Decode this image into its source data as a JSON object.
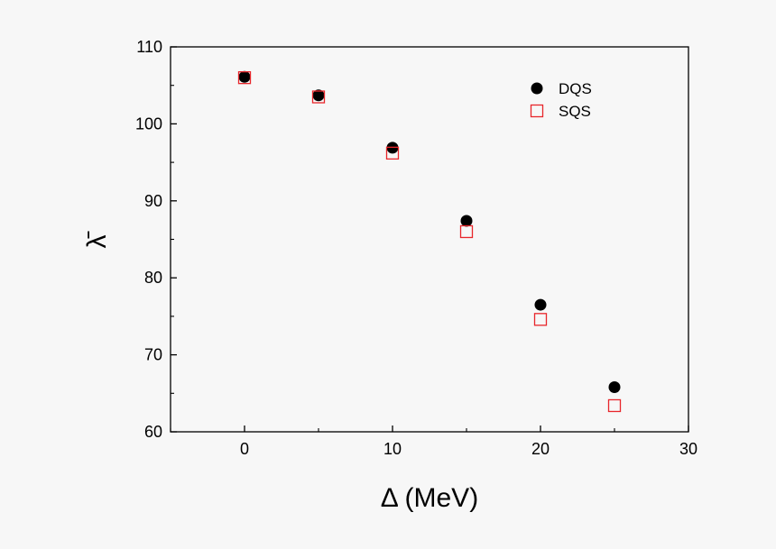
{
  "chart_data": {
    "type": "scatter",
    "xlabel": "Δ (MeV)",
    "ylabel": "λ̄",
    "xlim": [
      -5,
      30
    ],
    "ylim": [
      60,
      110
    ],
    "xticks": [
      0,
      10,
      20,
      30
    ],
    "yticks": [
      60,
      70,
      80,
      90,
      100,
      110
    ],
    "grid": false,
    "legend_position": "top-right",
    "series": [
      {
        "name": "DQS",
        "marker": "filled-circle",
        "color": "#000000",
        "points": [
          {
            "x": 0,
            "y": 106.1
          },
          {
            "x": 5,
            "y": 103.7
          },
          {
            "x": 10,
            "y": 96.9
          },
          {
            "x": 15,
            "y": 87.4
          },
          {
            "x": 20,
            "y": 76.5
          },
          {
            "x": 25,
            "y": 65.8
          }
        ]
      },
      {
        "name": "SQS",
        "marker": "open-square",
        "color": "#e8262b",
        "points": [
          {
            "x": 0,
            "y": 106.0
          },
          {
            "x": 5,
            "y": 103.5
          },
          {
            "x": 10,
            "y": 96.2
          },
          {
            "x": 15,
            "y": 86.0
          },
          {
            "x": 20,
            "y": 74.6
          },
          {
            "x": 25,
            "y": 63.4
          }
        ]
      }
    ]
  }
}
